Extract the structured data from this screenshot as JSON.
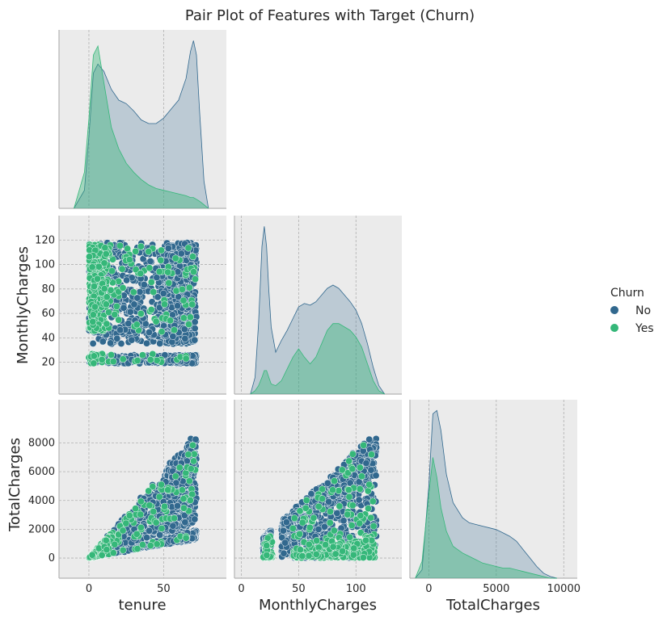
{
  "chart_data": {
    "type": "scatter",
    "title": "Pair Plot of Features with Target (Churn)",
    "variables": [
      "tenure",
      "MonthlyCharges",
      "TotalCharges"
    ],
    "legend": {
      "title": "Churn",
      "placement": "right",
      "entries": [
        "No",
        "Yes"
      ]
    },
    "colors": {
      "No": "#31688e",
      "Yes": "#35b779"
    },
    "grid": true,
    "ranges": {
      "tenure": [
        -20,
        92
      ],
      "MonthlyCharges": [
        -6,
        140
      ],
      "TotalCharges": [
        -1400,
        11000
      ]
    },
    "ticks": {
      "tenure": [
        0,
        50
      ],
      "MonthlyCharges_y": [
        20,
        40,
        60,
        80,
        100,
        120
      ],
      "MonthlyCharges_x": [
        0,
        50,
        100
      ],
      "TotalCharges_y": [
        0,
        2000,
        4000,
        6000,
        8000
      ],
      "TotalCharges_x": [
        0,
        5000,
        10000
      ]
    },
    "kde": {
      "tenure": {
        "x": [
          -10,
          -3,
          0,
          3,
          6,
          10,
          15,
          20,
          25,
          30,
          35,
          40,
          45,
          50,
          55,
          60,
          65,
          68,
          70,
          72,
          74,
          77,
          80
        ],
        "No": [
          0.0,
          0.1,
          0.4,
          0.75,
          0.8,
          0.76,
          0.66,
          0.6,
          0.58,
          0.54,
          0.49,
          0.47,
          0.47,
          0.5,
          0.55,
          0.6,
          0.72,
          0.87,
          0.93,
          0.85,
          0.55,
          0.15,
          0.0
        ],
        "Yes": [
          0.0,
          0.2,
          0.5,
          0.85,
          0.9,
          0.7,
          0.45,
          0.33,
          0.25,
          0.2,
          0.16,
          0.13,
          0.11,
          0.1,
          0.09,
          0.08,
          0.07,
          0.06,
          0.06,
          0.05,
          0.04,
          0.02,
          0.0
        ]
      },
      "MonthlyCharges": {
        "x": [
          8,
          12,
          15,
          18,
          20,
          22,
          24,
          26,
          30,
          35,
          40,
          45,
          50,
          55,
          60,
          65,
          70,
          75,
          80,
          85,
          90,
          95,
          100,
          105,
          110,
          115,
          120,
          125
        ],
        "No": [
          0.0,
          0.1,
          0.42,
          0.88,
          1.0,
          0.88,
          0.62,
          0.4,
          0.25,
          0.32,
          0.38,
          0.45,
          0.52,
          0.54,
          0.53,
          0.55,
          0.59,
          0.63,
          0.65,
          0.63,
          0.59,
          0.55,
          0.5,
          0.42,
          0.3,
          0.16,
          0.05,
          0.0
        ],
        "Yes": [
          0.0,
          0.02,
          0.05,
          0.1,
          0.14,
          0.14,
          0.1,
          0.06,
          0.05,
          0.08,
          0.15,
          0.22,
          0.27,
          0.22,
          0.18,
          0.22,
          0.3,
          0.38,
          0.42,
          0.42,
          0.4,
          0.38,
          0.34,
          0.28,
          0.18,
          0.08,
          0.02,
          0.0
        ]
      },
      "TotalCharges": {
        "x": [
          -1000,
          -500,
          0,
          300,
          600,
          900,
          1300,
          1800,
          2500,
          3000,
          3500,
          4000,
          4500,
          5000,
          5500,
          6000,
          6500,
          7000,
          7500,
          8000,
          8500,
          9000,
          9500
        ],
        "No": [
          0.0,
          0.05,
          0.55,
          0.98,
          1.0,
          0.88,
          0.62,
          0.45,
          0.36,
          0.33,
          0.32,
          0.31,
          0.3,
          0.29,
          0.27,
          0.25,
          0.22,
          0.17,
          0.12,
          0.07,
          0.03,
          0.01,
          0.0
        ],
        "Yes": [
          0.0,
          0.1,
          0.5,
          0.72,
          0.6,
          0.42,
          0.28,
          0.19,
          0.15,
          0.13,
          0.11,
          0.09,
          0.08,
          0.07,
          0.06,
          0.06,
          0.05,
          0.04,
          0.03,
          0.02,
          0.01,
          0.0,
          0.0
        ]
      }
    }
  }
}
